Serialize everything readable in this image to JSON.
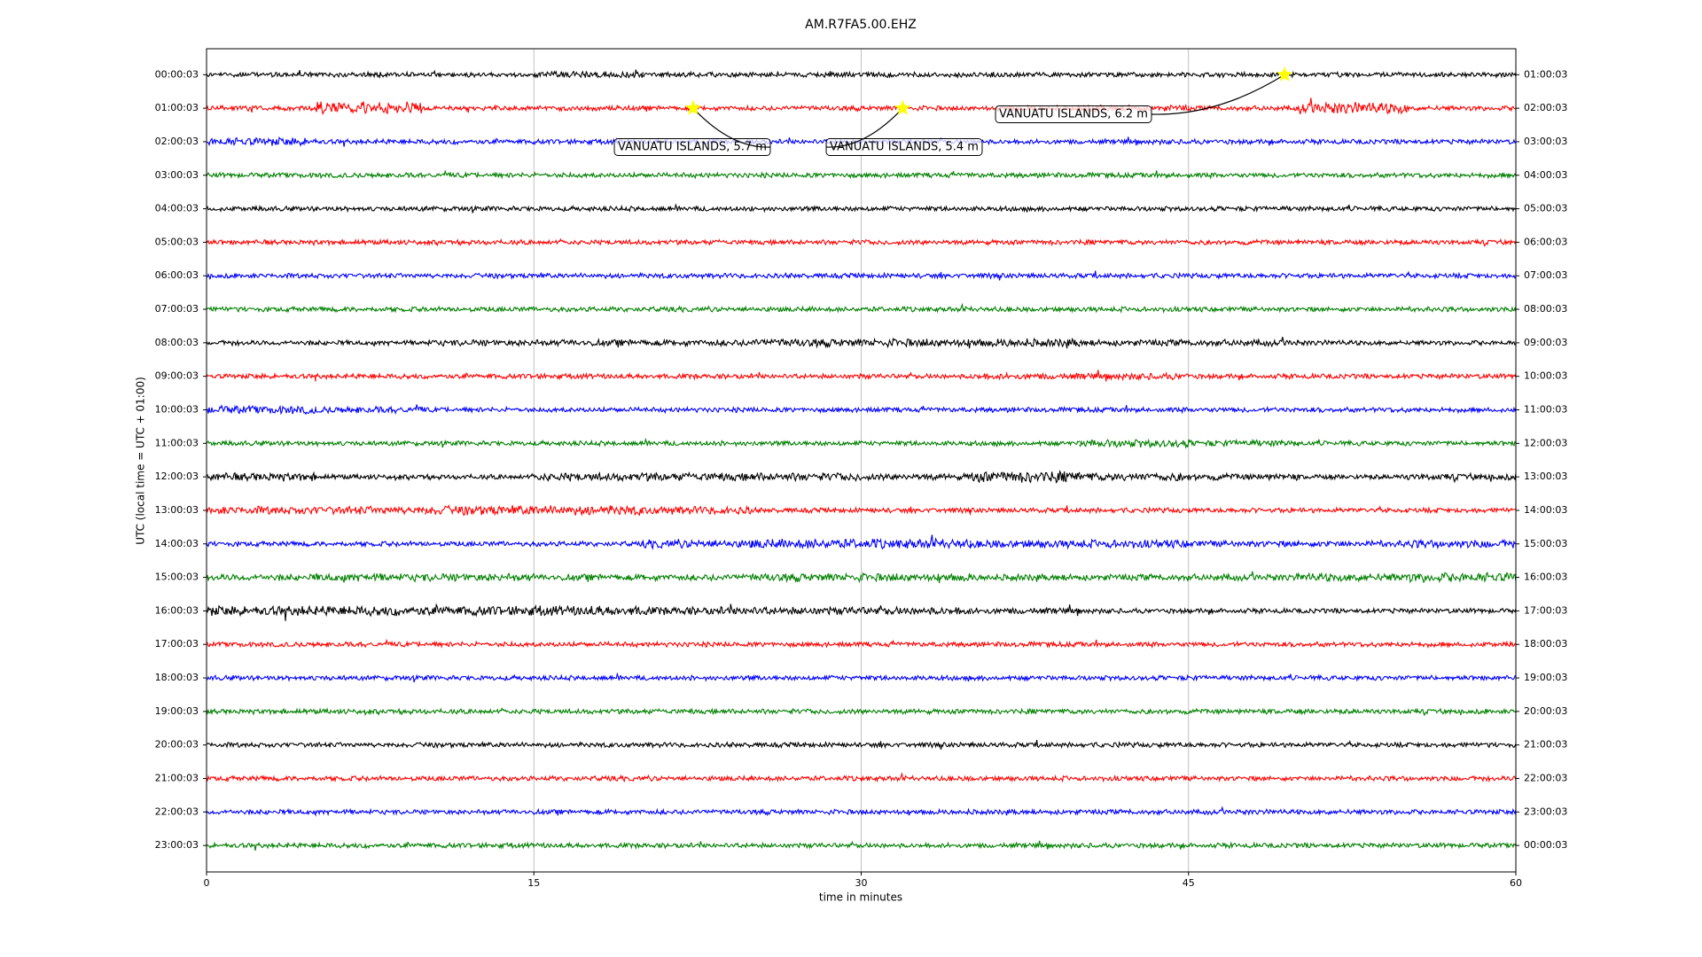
{
  "chart_data": {
    "type": "helicorder",
    "title": "AM.R7FA5.00.EHZ",
    "xlabel": "time in minutes",
    "ylabel": "UTC (local time = UTC + 01:00)",
    "xlim": [
      0,
      60
    ],
    "xticks": [
      0,
      15,
      30,
      45,
      60
    ],
    "grid": true,
    "rows": [
      {
        "left": "00:00:03",
        "right": "01:00:03",
        "color": "#000000",
        "envelope": [
          3,
          3,
          3,
          4,
          3,
          3,
          3,
          3,
          3,
          3,
          3,
          3
        ]
      },
      {
        "left": "01:00:03",
        "right": "02:00:03",
        "color": "#ff0000",
        "envelope": [
          3,
          8,
          3,
          3,
          3,
          3,
          3,
          3,
          4,
          3,
          7,
          3
        ]
      },
      {
        "left": "02:00:03",
        "right": "03:00:03",
        "color": "#0000ff",
        "envelope": [
          5,
          3,
          3,
          3,
          3,
          3,
          3,
          3,
          3,
          3,
          3,
          3
        ]
      },
      {
        "left": "03:00:03",
        "right": "04:00:03",
        "color": "#008000",
        "envelope": [
          3,
          3,
          3,
          3,
          3,
          3,
          3,
          3,
          3,
          3,
          3,
          3
        ]
      },
      {
        "left": "04:00:03",
        "right": "05:00:03",
        "color": "#000000",
        "envelope": [
          3,
          3,
          3,
          3,
          3,
          3,
          3,
          3,
          3,
          3,
          3,
          3
        ]
      },
      {
        "left": "05:00:03",
        "right": "06:00:03",
        "color": "#ff0000",
        "envelope": [
          3,
          3,
          3,
          3,
          3,
          3,
          3,
          3,
          3,
          3,
          3,
          3
        ]
      },
      {
        "left": "06:00:03",
        "right": "07:00:03",
        "color": "#0000ff",
        "envelope": [
          3,
          3,
          3,
          3,
          3,
          3,
          3,
          3,
          3,
          3,
          3,
          3
        ]
      },
      {
        "left": "07:00:03",
        "right": "08:00:03",
        "color": "#008000",
        "envelope": [
          3,
          3,
          3,
          3,
          3,
          3,
          3,
          3,
          3,
          3,
          3,
          3
        ]
      },
      {
        "left": "08:00:03",
        "right": "09:00:03",
        "color": "#000000",
        "envelope": [
          3,
          3,
          4,
          4,
          4,
          5,
          5,
          5,
          4,
          4,
          3,
          3
        ]
      },
      {
        "left": "09:00:03",
        "right": "10:00:03",
        "color": "#ff0000",
        "envelope": [
          3,
          3,
          3,
          3,
          3,
          3,
          3,
          4,
          4,
          3,
          3,
          3
        ]
      },
      {
        "left": "10:00:03",
        "right": "11:00:03",
        "color": "#0000ff",
        "envelope": [
          5,
          4,
          3,
          3,
          3,
          3,
          3,
          3,
          3,
          3,
          3,
          3
        ]
      },
      {
        "left": "11:00:03",
        "right": "12:00:03",
        "color": "#008000",
        "envelope": [
          3,
          3,
          3,
          3,
          3,
          3,
          3,
          3,
          5,
          4,
          3,
          3
        ]
      },
      {
        "left": "12:00:03",
        "right": "13:00:03",
        "color": "#000000",
        "envelope": [
          5,
          3,
          3,
          5,
          5,
          5,
          4,
          7,
          5,
          4,
          3,
          4
        ]
      },
      {
        "left": "13:00:03",
        "right": "14:00:03",
        "color": "#ff0000",
        "envelope": [
          5,
          5,
          6,
          6,
          5,
          3,
          3,
          3,
          3,
          3,
          3,
          3
        ]
      },
      {
        "left": "14:00:03",
        "right": "15:00:03",
        "color": "#0000ff",
        "envelope": [
          3,
          3,
          3,
          3,
          5,
          6,
          6,
          5,
          5,
          4,
          4,
          5
        ]
      },
      {
        "left": "15:00:03",
        "right": "16:00:03",
        "color": "#008000",
        "envelope": [
          4,
          5,
          5,
          4,
          4,
          5,
          5,
          4,
          4,
          4,
          5,
          6
        ]
      },
      {
        "left": "16:00:03",
        "right": "17:00:03",
        "color": "#000000",
        "envelope": [
          6,
          6,
          6,
          6,
          5,
          5,
          5,
          4,
          3,
          3,
          3,
          3
        ]
      },
      {
        "left": "17:00:03",
        "right": "18:00:03",
        "color": "#ff0000",
        "envelope": [
          3,
          3,
          3,
          3,
          3,
          3,
          3,
          3,
          3,
          3,
          3,
          3
        ]
      },
      {
        "left": "18:00:03",
        "right": "19:00:03",
        "color": "#0000ff",
        "envelope": [
          3,
          3,
          3,
          3,
          3,
          3,
          3,
          3,
          3,
          3,
          3,
          3
        ]
      },
      {
        "left": "19:00:03",
        "right": "20:00:03",
        "color": "#008000",
        "envelope": [
          3,
          3,
          3,
          3,
          3,
          3,
          3,
          3,
          3,
          3,
          3,
          3
        ]
      },
      {
        "left": "20:00:03",
        "right": "21:00:03",
        "color": "#000000",
        "envelope": [
          3,
          3,
          3,
          3,
          3,
          3,
          3,
          3,
          3,
          3,
          3,
          3
        ]
      },
      {
        "left": "21:00:03",
        "right": "22:00:03",
        "color": "#ff0000",
        "envelope": [
          3,
          3,
          3,
          3,
          3,
          3,
          3,
          3,
          3,
          3,
          3,
          3
        ]
      },
      {
        "left": "22:00:03",
        "right": "23:00:03",
        "color": "#0000ff",
        "envelope": [
          3,
          3,
          3,
          3,
          3,
          3,
          3,
          3,
          3,
          3,
          3,
          3
        ]
      },
      {
        "left": "23:00:03",
        "right": "00:00:03",
        "color": "#008000",
        "envelope": [
          3,
          3,
          3,
          3,
          3,
          3,
          3,
          3,
          3,
          3,
          3,
          3
        ]
      }
    ],
    "events": [
      {
        "row": 0,
        "x": 49.4,
        "label": "VANUATU ISLANDS, 6.2 m"
      },
      {
        "row": 1,
        "x": 22.3,
        "label": "VANUATU ISLANDS, 5.7 m"
      },
      {
        "row": 1,
        "x": 31.9,
        "label": "VANUATU ISLANDS, 5.4 m"
      }
    ]
  }
}
